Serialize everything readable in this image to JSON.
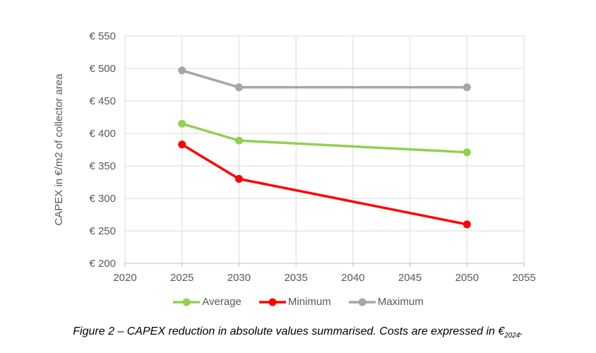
{
  "chart_data": {
    "type": "line",
    "x": [
      2025,
      2030,
      2050
    ],
    "series": [
      {
        "name": "Average",
        "color": "#92D050",
        "values": [
          415,
          389,
          371
        ]
      },
      {
        "name": "Minimum",
        "color": "#FF0000",
        "values": [
          383,
          330,
          260
        ]
      },
      {
        "name": "Maximum",
        "color": "#A6A6A6",
        "values": [
          497,
          471,
          471
        ]
      }
    ],
    "title": "",
    "xlabel": "",
    "ylabel": "CAPEX in €/m2 of collector area",
    "xlim": [
      2020,
      2055
    ],
    "ylim": [
      200,
      550
    ],
    "x_ticks": [
      2020,
      2025,
      2030,
      2035,
      2040,
      2045,
      2050,
      2055
    ],
    "y_ticks": [
      200,
      250,
      300,
      350,
      400,
      450,
      500,
      550
    ],
    "y_tick_prefix": "€ ",
    "grid": true,
    "legend_position": "bottom"
  },
  "legend": {
    "items": [
      "Average",
      "Minimum",
      "Maximum"
    ]
  },
  "caption": {
    "prefix": "Figure 2 – CAPEX reduction in absolute values summarised. Costs are expressed in €",
    "subscript": "2024",
    "suffix": "."
  },
  "colors": {
    "grid_line": "#D9D9D9",
    "axis_line": "#BFBFBF",
    "axis_text": "#595959",
    "series_average": "#92D050",
    "series_minimum": "#FF0000",
    "series_maximum": "#A6A6A6",
    "caption_text": "#000000"
  }
}
